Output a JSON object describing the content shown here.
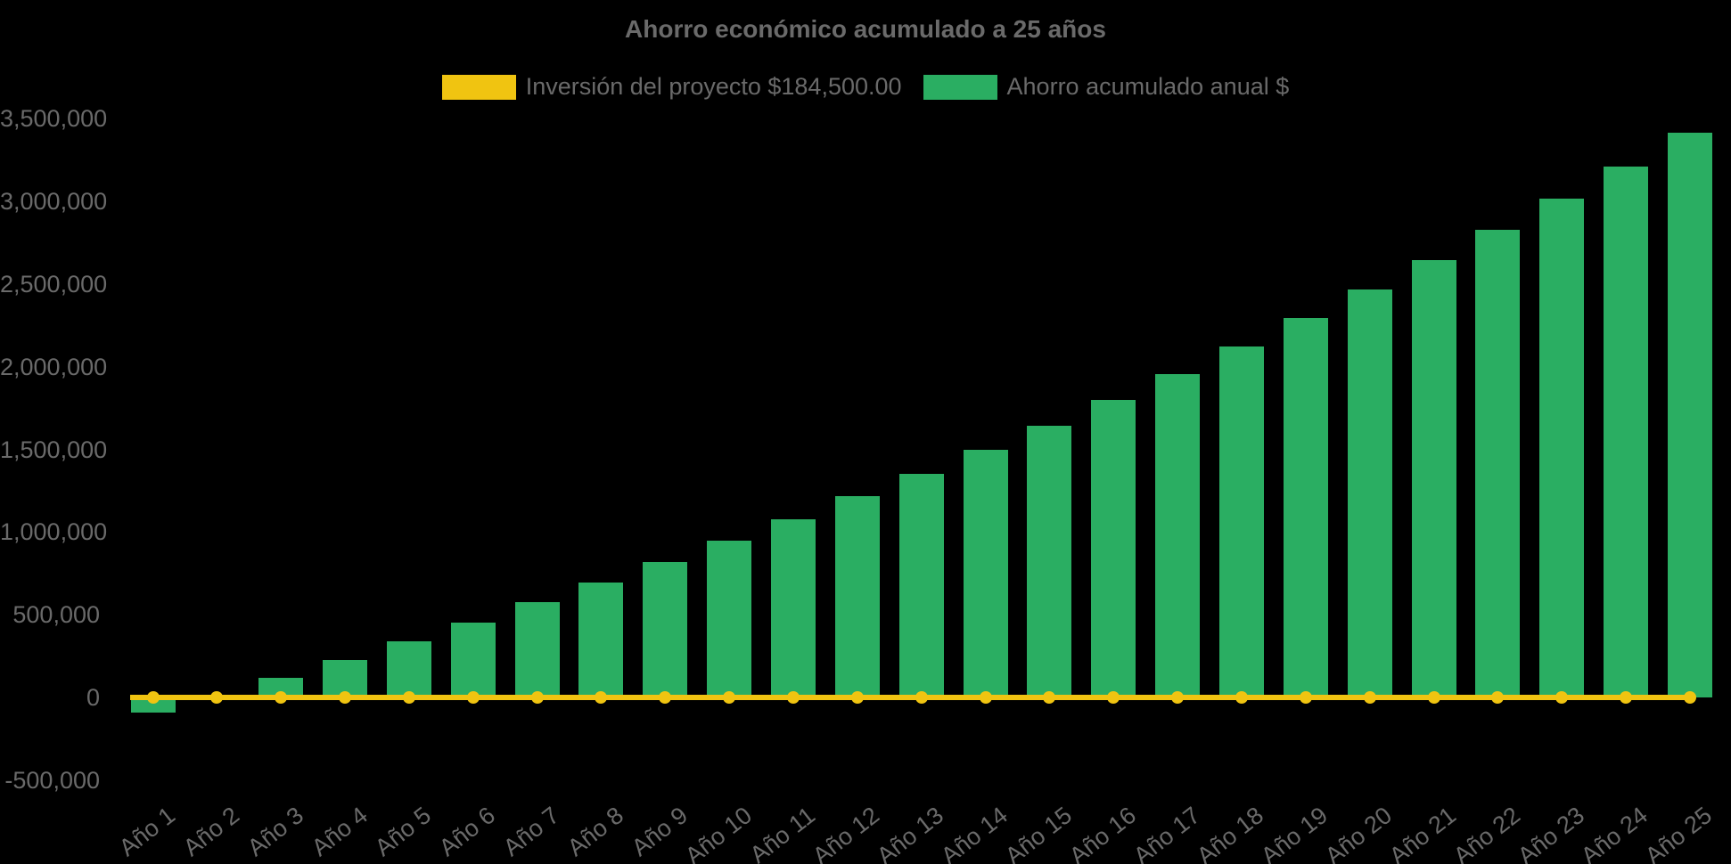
{
  "title": "Ahorro económico acumulado a 25 años",
  "colors": {
    "background": "#000000",
    "text": "#6a6a6a",
    "investment_yellow": "#f0c411",
    "savings_green": "#2aae62"
  },
  "legend": {
    "investment_label": "Inversión del proyecto $184,500.00",
    "savings_label": "Ahorro acumulado anual $"
  },
  "chart_data": {
    "type": "bar",
    "title": "Ahorro económico acumulado a 25 años",
    "categories": [
      "Año 1",
      "Año 2",
      "Año 3",
      "Año 4",
      "Año 5",
      "Año 6",
      "Año 7",
      "Año 8",
      "Año 9",
      "Año 10",
      "Año 11",
      "Año 12",
      "Año 13",
      "Año 14",
      "Año 15",
      "Año 16",
      "Año 17",
      "Año 18",
      "Año 19",
      "Año 20",
      "Año 21",
      "Año 22",
      "Año 23",
      "Año 24",
      "Año 25"
    ],
    "series": [
      {
        "name": "Inversión del proyecto $184,500.00",
        "type": "line",
        "color": "#f0c411",
        "investment_value": 184500,
        "plotted_value": 0,
        "note": "constant horizontal line with a point marker at every year, drawn at the zero baseline"
      },
      {
        "name": "Ahorro acumulado anual $",
        "type": "bar",
        "color": "#2aae62",
        "values": [
          -90000,
          15000,
          120000,
          227000,
          338000,
          455000,
          576000,
          694000,
          818000,
          946000,
          1080000,
          1215000,
          1355000,
          1500000,
          1645000,
          1800000,
          1955000,
          2125000,
          2295000,
          2465000,
          2645000,
          2830000,
          3015000,
          3210000,
          3415000
        ]
      }
    ],
    "xlabel": "",
    "ylabel": "",
    "ylim": [
      -500000,
      3500000
    ],
    "ytick_step": 500000,
    "ytick_labels": [
      "-500,000",
      "0",
      "500,000",
      "1,000,000",
      "1,500,000",
      "2,000,000",
      "2,500,000",
      "3,000,000",
      "3,500,000"
    ],
    "grid": false,
    "legend_position": "top-center"
  }
}
